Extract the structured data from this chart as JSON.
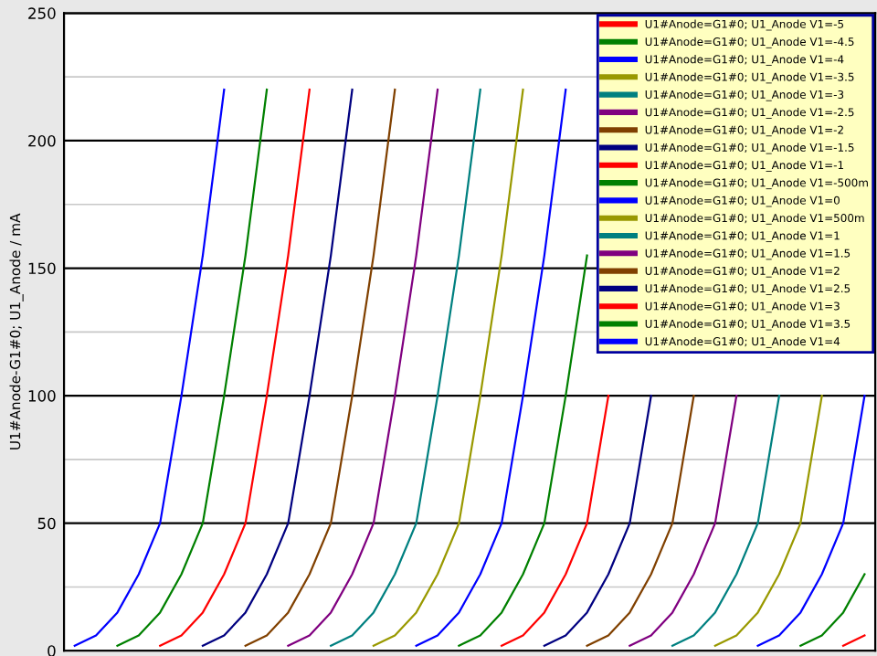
{
  "chart_data": {
    "type": "line",
    "ylabel": "U1#Anode-G1#0; U1_Anode / mA",
    "categories": [
      null,
      null,
      null,
      null,
      null,
      null,
      null,
      null,
      null,
      null,
      null,
      null,
      null,
      null,
      null,
      null,
      null,
      null,
      null,
      null,
      null,
      null,
      null,
      null,
      null,
      null,
      null,
      null,
      null,
      null,
      null,
      null,
      null,
      null,
      null,
      null,
      null,
      null
    ],
    "series": [
      {
        "name": "U1#Anode=G1#0; U1_Anode V1=-5",
        "color": "#ff0000",
        "values": [
          null,
          null,
          null,
          null,
          null,
          null,
          null,
          null,
          null,
          null,
          null,
          null,
          null,
          null,
          null,
          null,
          null,
          null,
          null,
          null,
          null,
          null,
          null,
          null,
          null,
          null,
          null,
          null,
          null,
          null,
          null,
          null,
          null,
          null,
          null,
          null,
          2,
          6
        ]
      },
      {
        "name": "U1#Anode=G1#0; U1_Anode V1=-4.5",
        "color": "#008000",
        "values": [
          null,
          null,
          null,
          null,
          null,
          null,
          null,
          null,
          null,
          null,
          null,
          null,
          null,
          null,
          null,
          null,
          null,
          null,
          null,
          null,
          null,
          null,
          null,
          null,
          null,
          null,
          null,
          null,
          null,
          null,
          null,
          null,
          null,
          null,
          2,
          6,
          15,
          30
        ]
      },
      {
        "name": "U1#Anode=G1#0; U1_Anode V1=-4",
        "color": "#0000ff",
        "values": [
          null,
          null,
          null,
          null,
          null,
          null,
          null,
          null,
          null,
          null,
          null,
          null,
          null,
          null,
          null,
          null,
          null,
          null,
          null,
          null,
          null,
          null,
          null,
          null,
          null,
          null,
          null,
          null,
          null,
          null,
          null,
          null,
          2,
          6,
          15,
          30,
          50,
          100
        ]
      },
      {
        "name": "U1#Anode=G1#0; U1_Anode V1=-3.5",
        "color": "#999900",
        "values": [
          null,
          null,
          null,
          null,
          null,
          null,
          null,
          null,
          null,
          null,
          null,
          null,
          null,
          null,
          null,
          null,
          null,
          null,
          null,
          null,
          null,
          null,
          null,
          null,
          null,
          null,
          null,
          null,
          null,
          null,
          2,
          6,
          15,
          30,
          50,
          100,
          null,
          null
        ]
      },
      {
        "name": "U1#Anode=G1#0; U1_Anode V1=-3",
        "color": "#008080",
        "values": [
          null,
          null,
          null,
          null,
          null,
          null,
          null,
          null,
          null,
          null,
          null,
          null,
          null,
          null,
          null,
          null,
          null,
          null,
          null,
          null,
          null,
          null,
          null,
          null,
          null,
          null,
          null,
          null,
          2,
          6,
          15,
          30,
          50,
          100,
          null,
          null,
          null,
          null
        ]
      },
      {
        "name": "U1#Anode=G1#0; U1_Anode V1=-2.5",
        "color": "#800080",
        "values": [
          null,
          null,
          null,
          null,
          null,
          null,
          null,
          null,
          null,
          null,
          null,
          null,
          null,
          null,
          null,
          null,
          null,
          null,
          null,
          null,
          null,
          null,
          null,
          null,
          null,
          null,
          2,
          6,
          15,
          30,
          50,
          100,
          null,
          null,
          null,
          null,
          null,
          null
        ]
      },
      {
        "name": "U1#Anode=G1#0; U1_Anode V1=-2",
        "color": "#804000",
        "values": [
          null,
          null,
          null,
          null,
          null,
          null,
          null,
          null,
          null,
          null,
          null,
          null,
          null,
          null,
          null,
          null,
          null,
          null,
          null,
          null,
          null,
          null,
          null,
          null,
          2,
          6,
          15,
          30,
          50,
          100,
          null,
          null,
          null,
          null,
          null,
          null,
          null,
          null
        ]
      },
      {
        "name": "U1#Anode=G1#0; U1_Anode V1=-1.5",
        "color": "#000080",
        "values": [
          null,
          null,
          null,
          null,
          null,
          null,
          null,
          null,
          null,
          null,
          null,
          null,
          null,
          null,
          null,
          null,
          null,
          null,
          null,
          null,
          null,
          null,
          2,
          6,
          15,
          30,
          50,
          100,
          null,
          null,
          null,
          null,
          null,
          null,
          null,
          null,
          null,
          null
        ]
      },
      {
        "name": "U1#Anode=G1#0; U1_Anode V1=-1",
        "color": "#ff0000",
        "values": [
          null,
          null,
          null,
          null,
          null,
          null,
          null,
          null,
          null,
          null,
          null,
          null,
          null,
          null,
          null,
          null,
          null,
          null,
          null,
          null,
          2,
          6,
          15,
          30,
          50,
          100,
          null,
          null,
          null,
          null,
          null,
          null,
          null,
          null,
          null,
          null,
          null,
          null
        ]
      },
      {
        "name": "U1#Anode=G1#0; U1_Anode V1=-500m",
        "color": "#008000",
        "values": [
          null,
          null,
          null,
          null,
          null,
          null,
          null,
          null,
          null,
          null,
          null,
          null,
          null,
          null,
          null,
          null,
          null,
          null,
          2,
          6,
          15,
          30,
          50,
          100,
          155,
          null,
          null,
          null,
          null,
          null,
          null,
          null,
          null,
          null,
          null,
          null,
          null,
          null
        ]
      },
      {
        "name": "U1#Anode=G1#0; U1_Anode V1=0",
        "color": "#0000ff",
        "values": [
          null,
          null,
          null,
          null,
          null,
          null,
          null,
          null,
          null,
          null,
          null,
          null,
          null,
          null,
          null,
          null,
          2,
          6,
          15,
          30,
          50,
          100,
          155,
          220,
          null,
          null,
          null,
          null,
          null,
          null,
          null,
          null,
          null,
          null,
          null,
          null,
          null,
          null
        ]
      },
      {
        "name": "U1#Anode=G1#0; U1_Anode V1=500m",
        "color": "#999900",
        "values": [
          null,
          null,
          null,
          null,
          null,
          null,
          null,
          null,
          null,
          null,
          null,
          null,
          null,
          null,
          2,
          6,
          15,
          30,
          50,
          100,
          155,
          220,
          null,
          null,
          null,
          null,
          null,
          null,
          null,
          null,
          null,
          null,
          null,
          null,
          null,
          null,
          null,
          null
        ]
      },
      {
        "name": "U1#Anode=G1#0; U1_Anode V1=1",
        "color": "#008080",
        "values": [
          null,
          null,
          null,
          null,
          null,
          null,
          null,
          null,
          null,
          null,
          null,
          null,
          2,
          6,
          15,
          30,
          50,
          100,
          155,
          220,
          null,
          null,
          null,
          null,
          null,
          null,
          null,
          null,
          null,
          null,
          null,
          null,
          null,
          null,
          null,
          null,
          null,
          null
        ]
      },
      {
        "name": "U1#Anode=G1#0; U1_Anode V1=1.5",
        "color": "#800080",
        "values": [
          null,
          null,
          null,
          null,
          null,
          null,
          null,
          null,
          null,
          null,
          2,
          6,
          15,
          30,
          50,
          100,
          155,
          220,
          null,
          null,
          null,
          null,
          null,
          null,
          null,
          null,
          null,
          null,
          null,
          null,
          null,
          null,
          null,
          null,
          null,
          null,
          null,
          null
        ]
      },
      {
        "name": "U1#Anode=G1#0; U1_Anode V1=2",
        "color": "#804000",
        "values": [
          null,
          null,
          null,
          null,
          null,
          null,
          null,
          null,
          2,
          6,
          15,
          30,
          50,
          100,
          155,
          220,
          null,
          null,
          null,
          null,
          null,
          null,
          null,
          null,
          null,
          null,
          null,
          null,
          null,
          null,
          null,
          null,
          null,
          null,
          null,
          null,
          null,
          null
        ]
      },
      {
        "name": "U1#Anode=G1#0; U1_Anode V1=2.5",
        "color": "#000080",
        "values": [
          null,
          null,
          null,
          null,
          null,
          null,
          2,
          6,
          15,
          30,
          50,
          100,
          155,
          220,
          null,
          null,
          null,
          null,
          null,
          null,
          null,
          null,
          null,
          null,
          null,
          null,
          null,
          null,
          null,
          null,
          null,
          null,
          null,
          null,
          null,
          null,
          null,
          null
        ]
      },
      {
        "name": "U1#Anode=G1#0; U1_Anode V1=3",
        "color": "#ff0000",
        "values": [
          null,
          null,
          null,
          null,
          2,
          6,
          15,
          30,
          50,
          100,
          155,
          220,
          null,
          null,
          null,
          null,
          null,
          null,
          null,
          null,
          null,
          null,
          null,
          null,
          null,
          null,
          null,
          null,
          null,
          null,
          null,
          null,
          null,
          null,
          null,
          null,
          null,
          null
        ]
      },
      {
        "name": "U1#Anode=G1#0; U1_Anode V1=3.5",
        "color": "#008000",
        "values": [
          null,
          null,
          2,
          6,
          15,
          30,
          50,
          100,
          155,
          220,
          null,
          null,
          null,
          null,
          null,
          null,
          null,
          null,
          null,
          null,
          null,
          null,
          null,
          null,
          null,
          null,
          null,
          null,
          null,
          null,
          null,
          null,
          null,
          null,
          null,
          null,
          null,
          null
        ]
      },
      {
        "name": "U1#Anode=G1#0; U1_Anode V1=4",
        "color": "#0000ff",
        "values": [
          2,
          6,
          15,
          30,
          50,
          100,
          155,
          220,
          null,
          null,
          null,
          null,
          null,
          null,
          null,
          null,
          null,
          null,
          null,
          null,
          null,
          null,
          null,
          null,
          null,
          null,
          null,
          null,
          null,
          null,
          null,
          null,
          null,
          null,
          null,
          null,
          null,
          null
        ]
      }
    ],
    "ylim": [
      0,
      250
    ],
    "yticks": [
      0,
      {
        "value": 25,
        "label": null
      },
      50,
      {
        "value": 75,
        "label": null
      },
      100,
      {
        "value": 125,
        "label": null
      },
      150,
      {
        "value": 175,
        "label": null
      },
      200,
      {
        "value": 225,
        "label": null
      },
      250
    ],
    "grid": "y",
    "legend": "top right",
    "tick_labels": "y"
  }
}
